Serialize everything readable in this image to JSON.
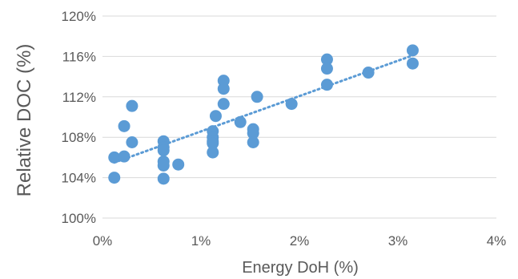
{
  "chart_data": {
    "type": "scatter",
    "title": "",
    "xlabel": "Energy DoH (%)",
    "ylabel": "Relative DOC (%)",
    "xlim": [
      0,
      4
    ],
    "ylim": [
      100,
      120
    ],
    "x_ticks": [
      "0%",
      "1%",
      "2%",
      "3%",
      "4%"
    ],
    "y_ticks": [
      "100%",
      "104%",
      "108%",
      "112%",
      "116%",
      "120%"
    ],
    "grid": "horizontal",
    "legend": "none",
    "marker_color": "#5B9BD5",
    "trendline": {
      "type": "linear",
      "style": "dotted",
      "color": "#5B9BD5",
      "x": [
        0.12,
        3.15
      ],
      "y": [
        105.5,
        116.1
      ]
    },
    "points": [
      {
        "x": 0.12,
        "y": 106.0
      },
      {
        "x": 0.12,
        "y": 104.0
      },
      {
        "x": 0.22,
        "y": 106.1
      },
      {
        "x": 0.22,
        "y": 109.1
      },
      {
        "x": 0.3,
        "y": 111.1
      },
      {
        "x": 0.3,
        "y": 107.5
      },
      {
        "x": 0.62,
        "y": 107.6
      },
      {
        "x": 0.62,
        "y": 107.0
      },
      {
        "x": 0.62,
        "y": 106.7
      },
      {
        "x": 0.62,
        "y": 105.6
      },
      {
        "x": 0.62,
        "y": 105.2
      },
      {
        "x": 0.62,
        "y": 103.9
      },
      {
        "x": 0.77,
        "y": 105.3
      },
      {
        "x": 1.12,
        "y": 108.6
      },
      {
        "x": 1.12,
        "y": 108.0
      },
      {
        "x": 1.12,
        "y": 107.6
      },
      {
        "x": 1.12,
        "y": 107.4
      },
      {
        "x": 1.12,
        "y": 106.5
      },
      {
        "x": 1.15,
        "y": 110.1
      },
      {
        "x": 1.23,
        "y": 113.6
      },
      {
        "x": 1.23,
        "y": 112.8
      },
      {
        "x": 1.23,
        "y": 111.3
      },
      {
        "x": 1.4,
        "y": 109.5
      },
      {
        "x": 1.53,
        "y": 108.8
      },
      {
        "x": 1.53,
        "y": 108.4
      },
      {
        "x": 1.53,
        "y": 107.5
      },
      {
        "x": 1.57,
        "y": 112.0
      },
      {
        "x": 1.92,
        "y": 111.3
      },
      {
        "x": 2.28,
        "y": 115.7
      },
      {
        "x": 2.28,
        "y": 114.8
      },
      {
        "x": 2.28,
        "y": 113.2
      },
      {
        "x": 2.7,
        "y": 114.4
      },
      {
        "x": 3.15,
        "y": 116.6
      },
      {
        "x": 3.15,
        "y": 115.3
      }
    ]
  }
}
